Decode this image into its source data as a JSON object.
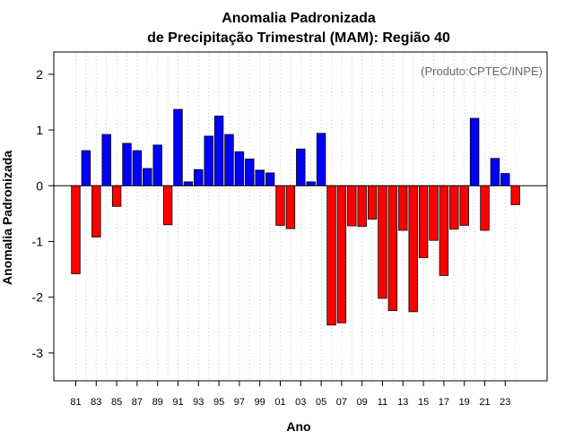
{
  "chart_data": {
    "type": "bar",
    "title": "Anomalia Padronizada",
    "subtitle": "de Precipitação Trimestral (MAM): Região 40",
    "xlabel": "Ano",
    "ylabel": "Anomalia Padronizada",
    "credit": "(Produto:CPTEC/INPE)",
    "ylim": [
      -3.5,
      2.4
    ],
    "yticks": [
      -3,
      -2,
      -1,
      0,
      1,
      2
    ],
    "ytick_labels": [
      "-3",
      "-2",
      "-1",
      "0",
      "1",
      "2"
    ],
    "grid": "vertical dotted",
    "categories": [
      "81",
      "82",
      "83",
      "84",
      "85",
      "86",
      "87",
      "88",
      "89",
      "90",
      "91",
      "92",
      "93",
      "94",
      "95",
      "96",
      "97",
      "98",
      "99",
      "00",
      "01",
      "02",
      "03",
      "04",
      "05",
      "06",
      "07",
      "08",
      "09",
      "10",
      "11",
      "12",
      "13",
      "14",
      "15",
      "16",
      "17",
      "18",
      "19",
      "20",
      "21",
      "22",
      "23",
      "24"
    ],
    "xtick_labels": [
      "81",
      "83",
      "85",
      "87",
      "89",
      "91",
      "93",
      "95",
      "97",
      "99",
      "01",
      "03",
      "05",
      "07",
      "09",
      "11",
      "13",
      "15",
      "17",
      "19",
      "21",
      "23"
    ],
    "values": [
      -1.58,
      0.63,
      -0.92,
      0.92,
      -0.37,
      0.76,
      0.63,
      0.31,
      0.73,
      -0.7,
      1.37,
      0.07,
      0.29,
      0.89,
      1.25,
      0.92,
      0.61,
      0.48,
      0.28,
      0.23,
      -0.71,
      -0.77,
      0.66,
      0.07,
      0.94,
      -2.5,
      -2.46,
      -0.72,
      -0.73,
      -0.6,
      -2.02,
      -2.24,
      -0.8,
      -2.26,
      -1.29,
      -0.98,
      -1.61,
      -0.78,
      -0.71,
      1.21,
      -0.8,
      0.49,
      0.22,
      -0.34
    ],
    "colors": {
      "positive": "#0000ff",
      "negative": "#ff0000"
    }
  }
}
